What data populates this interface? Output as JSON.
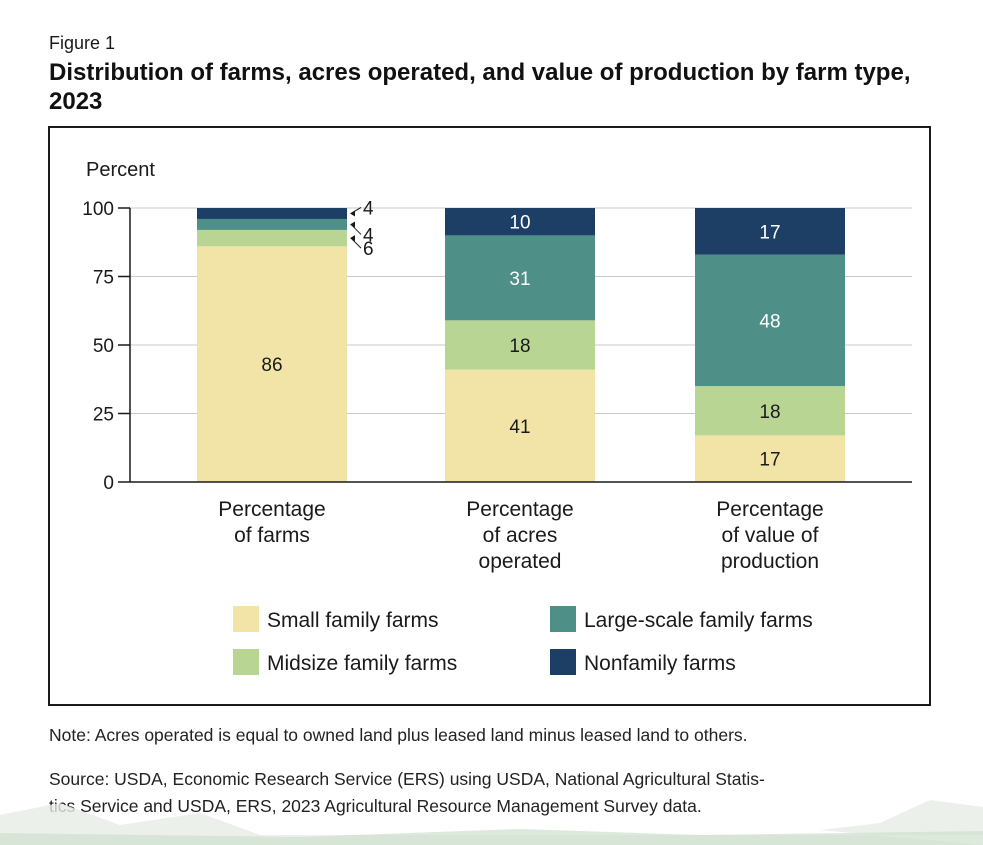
{
  "figure_label": "Figure 1",
  "title": "Distribution of farms, acres operated, and value of production by farm type, 2023",
  "note": "Note: Acres operated is equal to owned land plus leased land minus leased land to others.",
  "source": {
    "line1": "Source: USDA, Economic Research Service (ERS) using USDA, National Agricultural Statis-",
    "line2": "tics Service and USDA, ERS, 2023 Agricultural Resource Management Survey data."
  },
  "colors": {
    "small": "#f2e4a6",
    "midsize": "#b9d594",
    "large": "#4e9087",
    "nonfamily": "#1d3f66"
  },
  "chart_data": {
    "type": "bar",
    "stacked": true,
    "ylabel": "Percent",
    "ylim": [
      0,
      100
    ],
    "yticks": [
      0,
      25,
      50,
      75,
      100
    ],
    "grid": true,
    "legend_position": "bottom",
    "categories": [
      [
        "Percentage",
        "of farms"
      ],
      [
        "Percentage",
        "of acres",
        "operated"
      ],
      [
        "Percentage",
        "of value of",
        "production"
      ]
    ],
    "series": [
      {
        "name": "Small family farms",
        "key": "small",
        "values": [
          86,
          41,
          17
        ]
      },
      {
        "name": "Midsize family farms",
        "key": "midsize",
        "values": [
          6,
          18,
          18
        ]
      },
      {
        "name": "Large-scale family farms",
        "key": "large",
        "values": [
          4,
          31,
          48
        ]
      },
      {
        "name": "Nonfamily farms",
        "key": "nonfamily",
        "values": [
          4,
          10,
          17
        ]
      }
    ]
  }
}
